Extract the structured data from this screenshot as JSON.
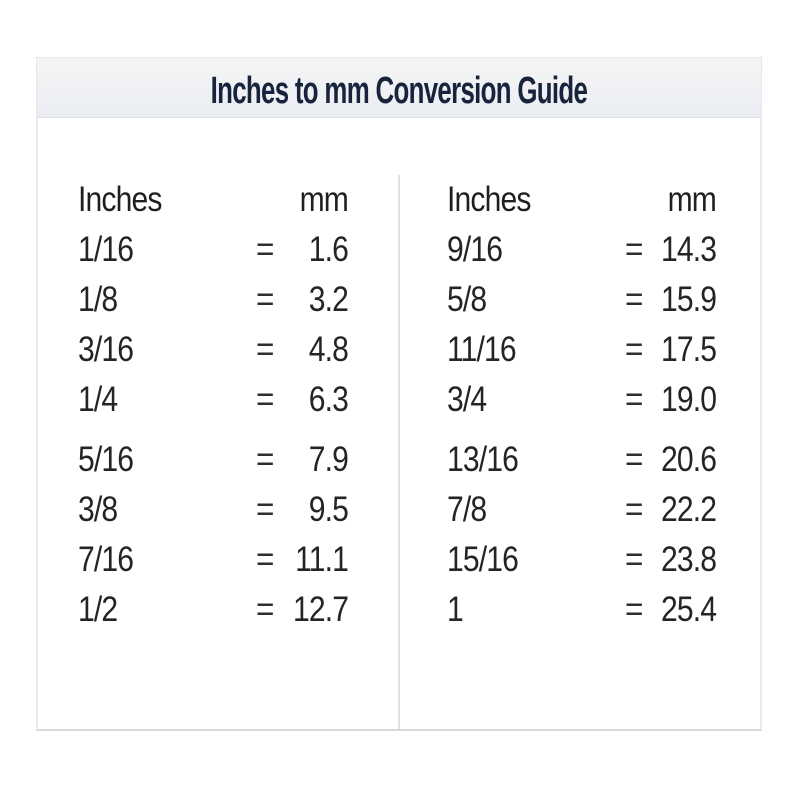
{
  "title": "Inches to mm Conversion Guide",
  "colors": {
    "title_text": "#18233c",
    "table_text": "#242424",
    "band_top": "#f4f4f4",
    "band_bottom": "#e9ecf2",
    "border": "#e0e0e0",
    "bottom_border": "#d8d8d8"
  },
  "table": {
    "left": {
      "inches_header": "Inches",
      "mm_header": "mm",
      "rows": [
        {
          "in": "1/16",
          "eq": "=",
          "mm": "1.6"
        },
        {
          "in": "1/8",
          "eq": "=",
          "mm": "3.2"
        },
        {
          "in": "3/16",
          "eq": "=",
          "mm": "4.8"
        },
        {
          "in": "1/4",
          "eq": "=",
          "mm": "6.3"
        },
        {
          "in": "5/16",
          "eq": "=",
          "mm": "7.9"
        },
        {
          "in": "3/8",
          "eq": "=",
          "mm": "9.5"
        },
        {
          "in": "7/16",
          "eq": "=",
          "mm": "11.1"
        },
        {
          "in": "1/2",
          "eq": "=",
          "mm": "12.7"
        }
      ]
    },
    "right": {
      "inches_header": "Inches",
      "mm_header": "mm",
      "rows": [
        {
          "in": "9/16",
          "eq": "=",
          "mm": "14.3"
        },
        {
          "in": "5/8",
          "eq": "=",
          "mm": "15.9"
        },
        {
          "in": "11/16",
          "eq": "=",
          "mm": "17.5"
        },
        {
          "in": "3/4",
          "eq": "=",
          "mm": "19.0"
        },
        {
          "in": "13/16",
          "eq": "=",
          "mm": "20.6"
        },
        {
          "in": "7/8",
          "eq": "=",
          "mm": "22.2"
        },
        {
          "in": "15/16",
          "eq": "=",
          "mm": "23.8"
        },
        {
          "in": "1",
          "eq": "=",
          "mm": "25.4"
        }
      ]
    }
  },
  "chart_data": {
    "type": "table",
    "title": "Inches to mm Conversion Guide",
    "columns": [
      "Inches",
      "mm"
    ],
    "rows": [
      [
        "1/16",
        1.6
      ],
      [
        "1/8",
        3.2
      ],
      [
        "3/16",
        4.8
      ],
      [
        "1/4",
        6.3
      ],
      [
        "5/16",
        7.9
      ],
      [
        "3/8",
        9.5
      ],
      [
        "7/16",
        11.1
      ],
      [
        "1/2",
        12.7
      ],
      [
        "9/16",
        14.3
      ],
      [
        "5/8",
        15.9
      ],
      [
        "11/16",
        17.5
      ],
      [
        "3/4",
        19.0
      ],
      [
        "13/16",
        20.6
      ],
      [
        "7/8",
        22.2
      ],
      [
        "15/16",
        23.8
      ],
      [
        "1",
        25.4
      ]
    ],
    "layout": "two-column table, equals sign between inches and mm values"
  }
}
